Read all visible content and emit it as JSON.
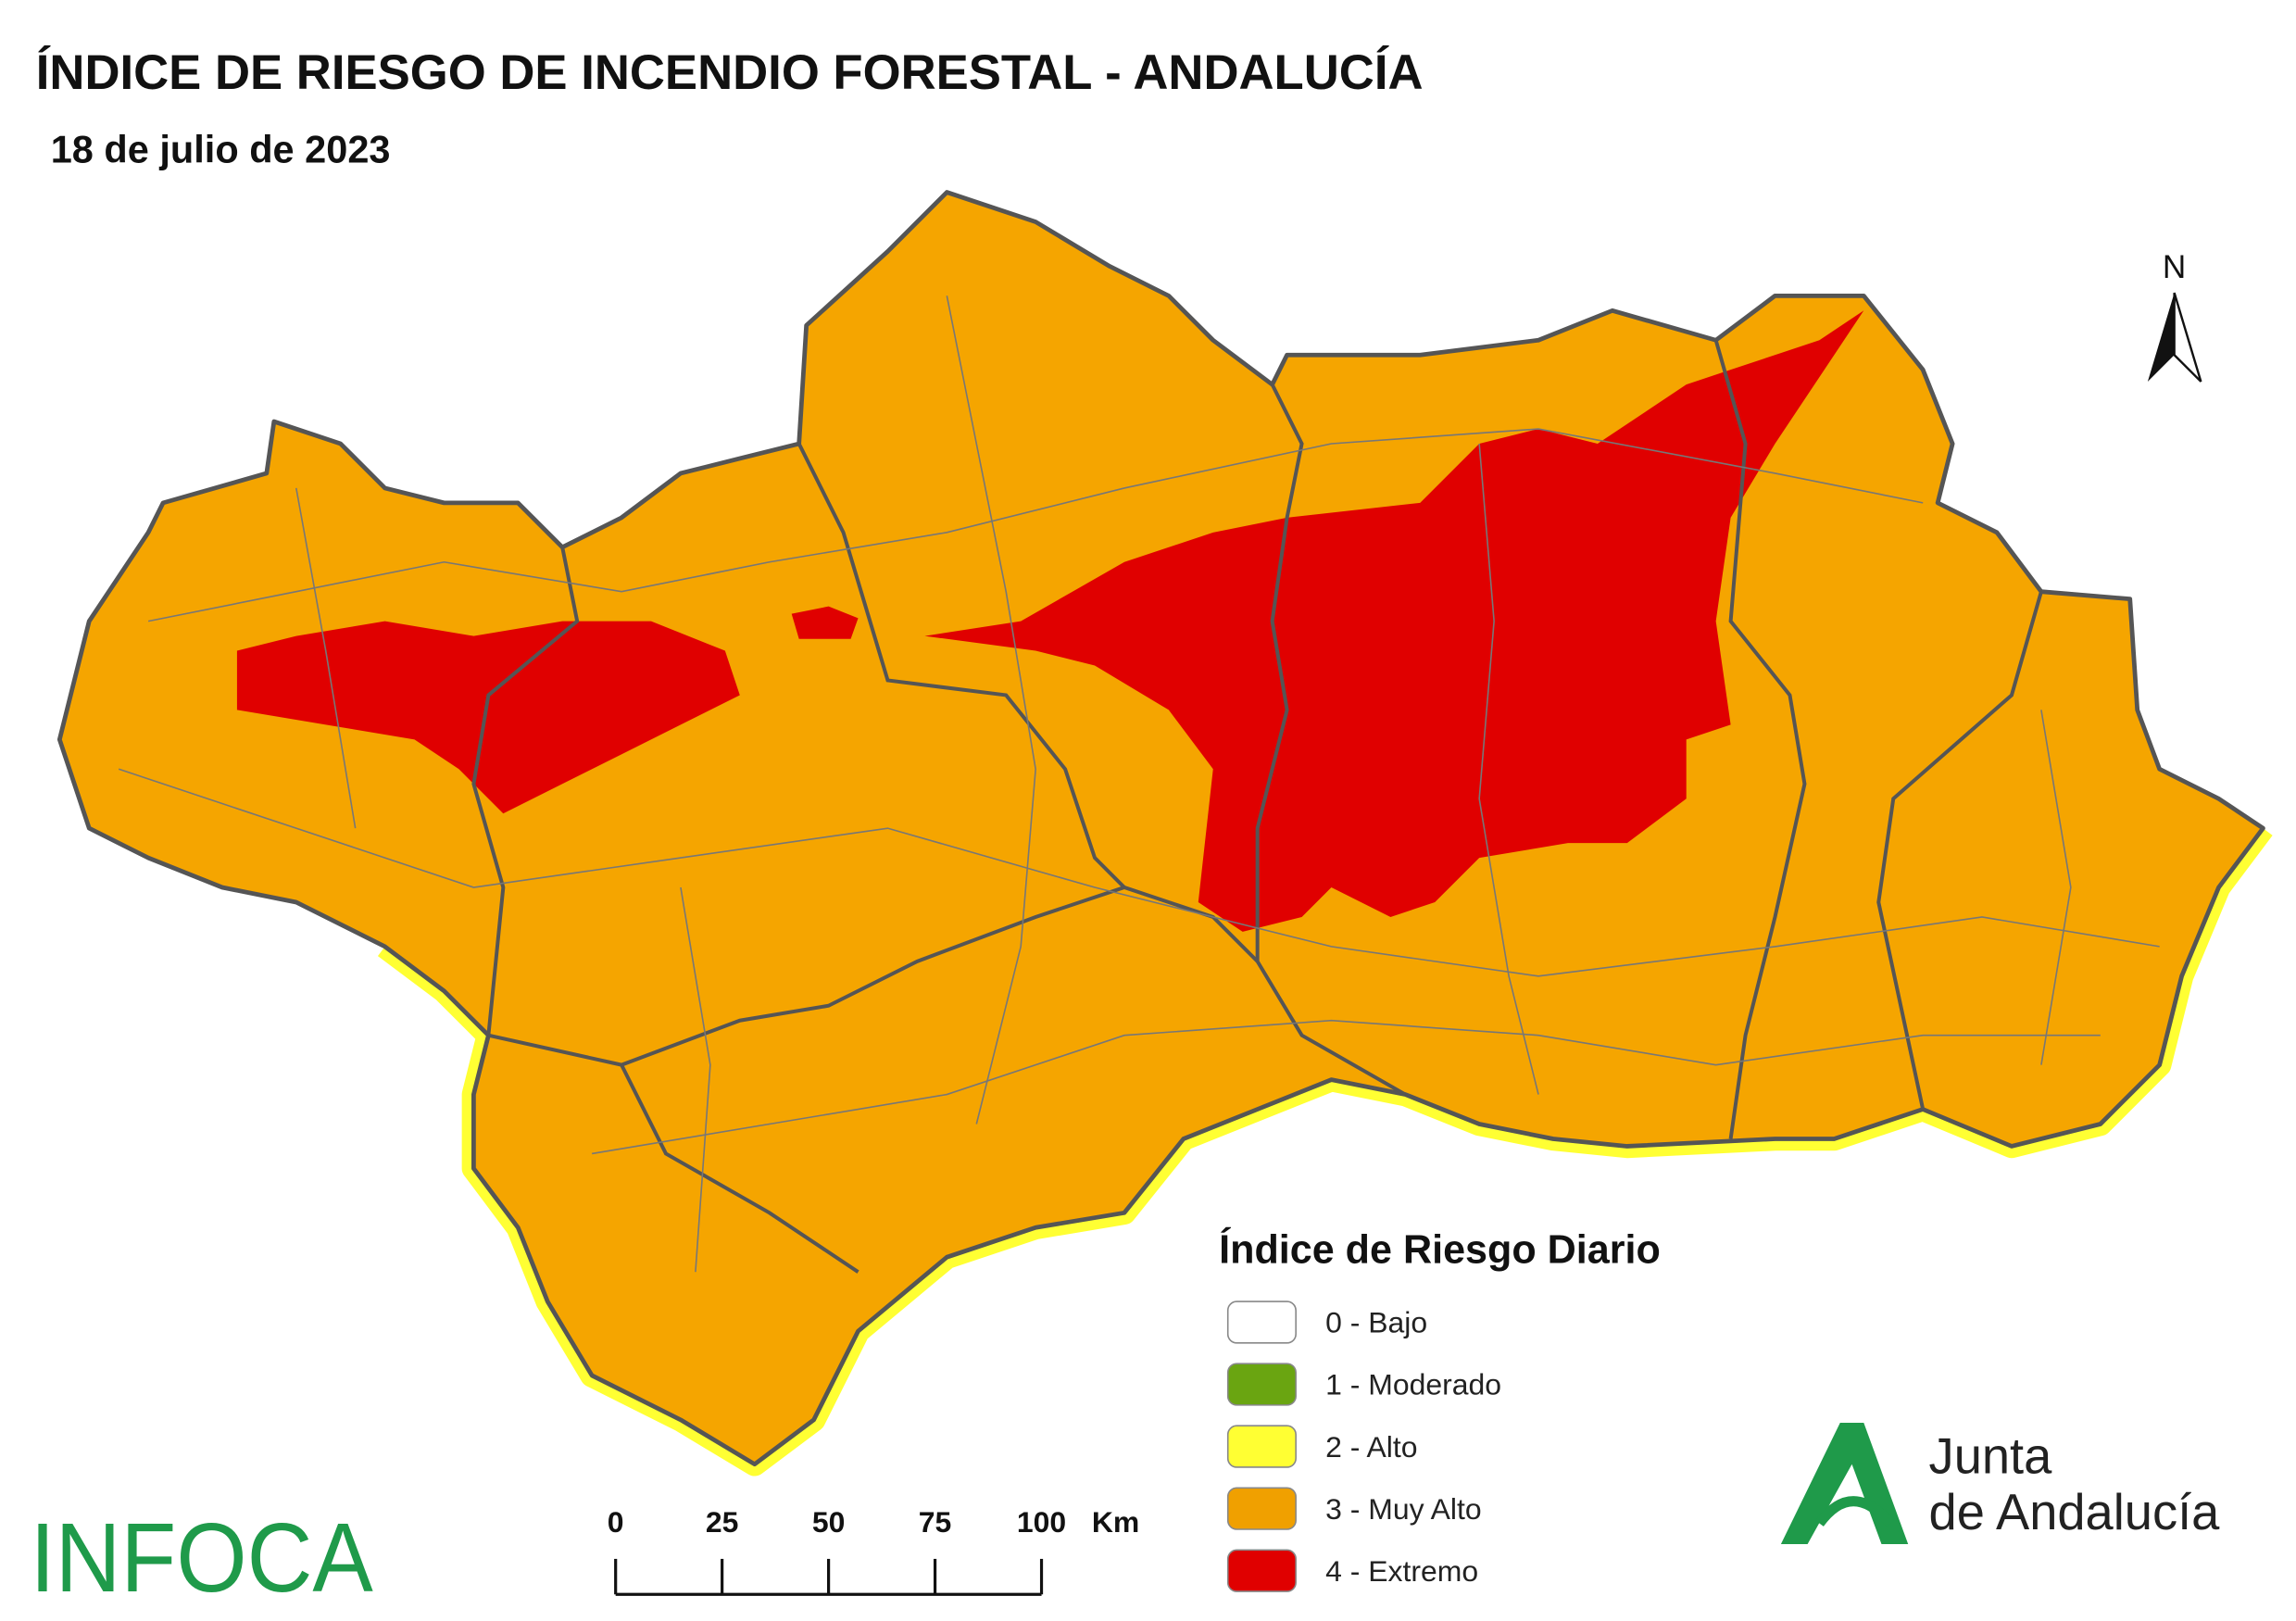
{
  "header": {
    "title": "ÍNDICE DE RIESGO DE INCENDIO FORESTAL - ANDALUCÍA",
    "date": "18 de julio de 2023"
  },
  "north": "N",
  "legend": {
    "title": "Índice de Riesgo Diario",
    "items": [
      {
        "label": "0 - Bajo",
        "color": "#ffffff"
      },
      {
        "label": "1 - Moderado",
        "color": "#6aa511"
      },
      {
        "label": "2 - Alto",
        "color": "#ffff33"
      },
      {
        "label": "3 - Muy Alto",
        "color": "#f0a000"
      },
      {
        "label": "4 - Extremo",
        "color": "#e00000"
      }
    ]
  },
  "scale_bar": {
    "ticks": [
      0,
      25,
      50,
      75,
      100
    ],
    "unit": "Km"
  },
  "logos": {
    "infoca": "INFOCA",
    "junta_line1": "Junta",
    "junta_line2": "de Andalucía"
  }
}
